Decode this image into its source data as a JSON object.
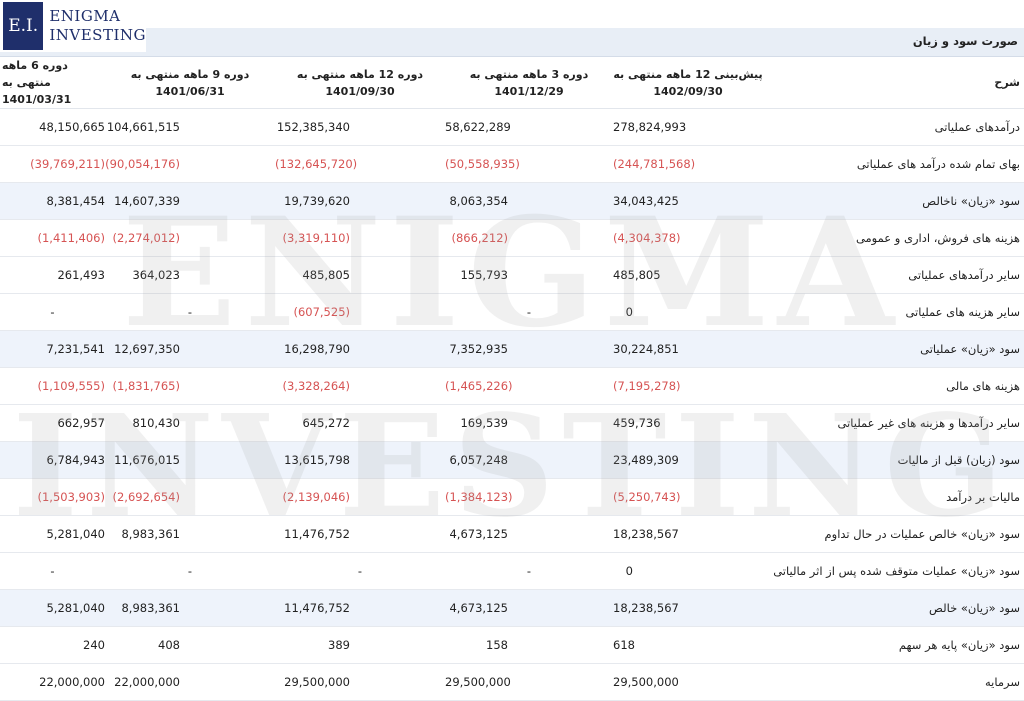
{
  "brand": {
    "mark": "E.I.",
    "name_line1": "ENIGMA",
    "name_line2": "INVESTING",
    "watermark_line1": "ENIGMA",
    "watermark_line2": "INVESTING"
  },
  "title": "صورت سود و زیان",
  "columns": {
    "label": "شرح",
    "c1": "پیش‌بینی 12 ماهه منتهی به 1402/09/30",
    "c2": "دوره 3 ماهه منتهی به 1401/12/29",
    "c3": "دوره 12 ماهه منتهی به 1401/09/30",
    "c4": "دوره 9 ماهه منتهی به 1401/06/31",
    "c5": "دوره 6 ماهه منتهی به 1401/03/31"
  },
  "negative_color": "#d65353",
  "rows": [
    {
      "label": "درآمدهای عملیاتی",
      "v": [
        "278,824,993",
        "58,622,289",
        "152,385,340",
        "104,661,515",
        "48,150,665"
      ]
    },
    {
      "label": "بهای تمام شده درآمد های عملیاتی",
      "v": [
        "(244,781,568)",
        "(50,558,935)",
        "(132,645,720)",
        "(90,054,176)",
        "(39,769,211)"
      ]
    },
    {
      "label": "سود «زیان» ناخالص",
      "v": [
        "34,043,425",
        "8,063,354",
        "19,739,620",
        "14,607,339",
        "8,381,454"
      ]
    },
    {
      "label": "هزینه های فروش، اداری و عمومی",
      "v": [
        "(4,304,378)",
        "(866,212)",
        "(3,319,110)",
        "(2,274,012)",
        "(1,411,406)"
      ]
    },
    {
      "label": "سایر درآمدهای عملیاتی",
      "v": [
        "485,805",
        "155,793",
        "485,805",
        "364,023",
        "261,493"
      ]
    },
    {
      "label": "سایر هزینه های عملیاتی",
      "v": [
        "0",
        "-",
        "(607,525)",
        "-",
        "-"
      ]
    },
    {
      "label": "سود «زیان» عملیاتی",
      "v": [
        "30,224,851",
        "7,352,935",
        "16,298,790",
        "12,697,350",
        "7,231,541"
      ]
    },
    {
      "label": "هزینه های مالی",
      "v": [
        "(7,195,278)",
        "(1,465,226)",
        "(3,328,264)",
        "(1,831,765)",
        "(1,109,555)"
      ]
    },
    {
      "label": "سایر درآمدها و هزینه های غیر عملیاتی",
      "v": [
        "459,736",
        "169,539",
        "645,272",
        "810,430",
        "662,957"
      ]
    },
    {
      "label": "سود (زیان) قبل از مالیات",
      "v": [
        "23,489,309",
        "6,057,248",
        "13,615,798",
        "11,676,015",
        "6,784,943"
      ]
    },
    {
      "label": "مالیات بر درآمد",
      "v": [
        "(5,250,743)",
        "(1,384,123)",
        "(2,139,046)",
        "(2,692,654)",
        "(1,503,903)"
      ]
    },
    {
      "label": "سود «زیان» خالص عملیات در حال تداوم",
      "v": [
        "18,238,567",
        "4,673,125",
        "11,476,752",
        "8,983,361",
        "5,281,040"
      ]
    },
    {
      "label": "سود «زیان» عملیات متوقف شده پس از اثر مالیاتی",
      "v": [
        "0",
        "-",
        "-",
        "-",
        "-"
      ]
    },
    {
      "label": "سود «زیان» خالص",
      "v": [
        "18,238,567",
        "4,673,125",
        "11,476,752",
        "8,983,361",
        "5,281,040"
      ]
    },
    {
      "label": "سود «زیان» پایه هر سهم",
      "v": [
        "618",
        "158",
        "389",
        "408",
        "240"
      ]
    },
    {
      "label": "سرمایه",
      "v": [
        "29,500,000",
        "29,500,000",
        "29,500,000",
        "22,000,000",
        "22,000,000"
      ]
    }
  ]
}
